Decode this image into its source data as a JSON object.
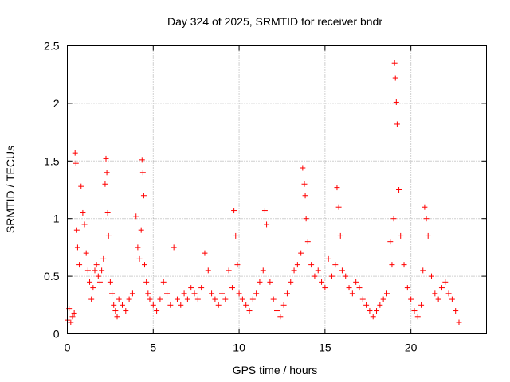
{
  "chart_data": {
    "type": "scatter",
    "title": "Day 324 of 2025, SRMTID for receiver bndr",
    "xlabel": "GPS time / hours",
    "ylabel": "SRMTID / TECUs",
    "xlim": [
      0,
      24.4
    ],
    "ylim": [
      0,
      2.5
    ],
    "x_ticks": [
      0,
      5,
      10,
      15,
      20
    ],
    "x_tick_labels": [
      "0",
      "5",
      "10",
      "15",
      "20"
    ],
    "y_ticks": [
      0,
      0.5,
      1,
      1.5,
      2,
      2.5
    ],
    "y_tick_labels": [
      "0",
      "0.5",
      "1",
      "1.5",
      "2",
      "2.5"
    ],
    "grid": true,
    "marker": "+",
    "color": "#ff0000",
    "series": [
      {
        "name": "SRMTID",
        "x": [
          0.0,
          0.1,
          0.2,
          0.3,
          0.4,
          0.45,
          0.5,
          0.55,
          0.6,
          0.7,
          0.8,
          0.9,
          1.0,
          1.1,
          1.2,
          1.3,
          1.4,
          1.5,
          1.6,
          1.7,
          1.8,
          1.9,
          2.0,
          2.1,
          2.2,
          2.25,
          2.3,
          2.35,
          2.4,
          2.5,
          2.6,
          2.7,
          2.8,
          2.9,
          3.0,
          3.2,
          3.4,
          3.6,
          3.8,
          4.0,
          4.1,
          4.2,
          4.3,
          4.35,
          4.4,
          4.45,
          4.5,
          4.6,
          4.7,
          4.8,
          5.0,
          5.2,
          5.4,
          5.6,
          5.8,
          6.0,
          6.2,
          6.4,
          6.6,
          6.8,
          7.0,
          7.2,
          7.4,
          7.6,
          7.8,
          8.0,
          8.2,
          8.4,
          8.6,
          8.8,
          9.0,
          9.2,
          9.4,
          9.6,
          9.7,
          9.8,
          9.9,
          10.0,
          10.2,
          10.4,
          10.6,
          10.8,
          11.0,
          11.2,
          11.4,
          11.5,
          11.6,
          11.8,
          12.0,
          12.2,
          12.4,
          12.6,
          12.8,
          13.0,
          13.2,
          13.4,
          13.6,
          13.7,
          13.8,
          13.85,
          13.9,
          14.0,
          14.2,
          14.4,
          14.6,
          14.8,
          15.0,
          15.2,
          15.4,
          15.6,
          15.7,
          15.8,
          15.9,
          16.0,
          16.2,
          16.4,
          16.6,
          16.8,
          17.0,
          17.2,
          17.4,
          17.6,
          17.8,
          18.0,
          18.2,
          18.4,
          18.6,
          18.8,
          18.9,
          19.0,
          19.05,
          19.1,
          19.15,
          19.2,
          19.3,
          19.4,
          19.6,
          19.8,
          20.0,
          20.2,
          20.4,
          20.6,
          20.7,
          20.8,
          20.9,
          21.0,
          21.2,
          21.4,
          21.6,
          21.8,
          22.0,
          22.2,
          22.4,
          22.6,
          22.8
        ],
        "y": [
          0.12,
          0.22,
          0.1,
          0.15,
          0.18,
          1.57,
          1.48,
          0.9,
          0.75,
          0.6,
          1.28,
          1.05,
          0.95,
          0.7,
          0.55,
          0.45,
          0.3,
          0.4,
          0.55,
          0.6,
          0.5,
          0.45,
          0.55,
          0.65,
          1.3,
          1.52,
          1.4,
          1.05,
          0.85,
          0.45,
          0.35,
          0.25,
          0.2,
          0.15,
          0.3,
          0.25,
          0.2,
          0.3,
          0.35,
          1.02,
          0.75,
          0.65,
          0.9,
          1.51,
          1.4,
          1.2,
          0.6,
          0.45,
          0.35,
          0.3,
          0.25,
          0.2,
          0.3,
          0.45,
          0.35,
          0.25,
          0.75,
          0.3,
          0.25,
          0.35,
          0.3,
          0.4,
          0.35,
          0.3,
          0.4,
          0.7,
          0.55,
          0.35,
          0.3,
          0.25,
          0.35,
          0.3,
          0.55,
          0.4,
          1.07,
          0.85,
          0.6,
          0.35,
          0.3,
          0.25,
          0.2,
          0.3,
          0.35,
          0.45,
          0.55,
          1.07,
          0.95,
          0.45,
          0.3,
          0.2,
          0.15,
          0.25,
          0.35,
          0.45,
          0.55,
          0.6,
          0.7,
          1.44,
          1.3,
          1.2,
          1.0,
          0.8,
          0.6,
          0.5,
          0.55,
          0.45,
          0.4,
          0.65,
          0.5,
          0.6,
          1.27,
          1.1,
          0.85,
          0.55,
          0.5,
          0.4,
          0.35,
          0.45,
          0.4,
          0.3,
          0.25,
          0.2,
          0.15,
          0.2,
          0.25,
          0.3,
          0.35,
          0.8,
          0.6,
          1.0,
          2.35,
          2.22,
          2.01,
          1.82,
          1.25,
          0.85,
          0.6,
          0.4,
          0.3,
          0.2,
          0.15,
          0.25,
          0.55,
          1.1,
          1.0,
          0.85,
          0.5,
          0.35,
          0.3,
          0.4,
          0.45,
          0.35,
          0.3,
          0.2,
          0.1
        ]
      }
    ]
  }
}
